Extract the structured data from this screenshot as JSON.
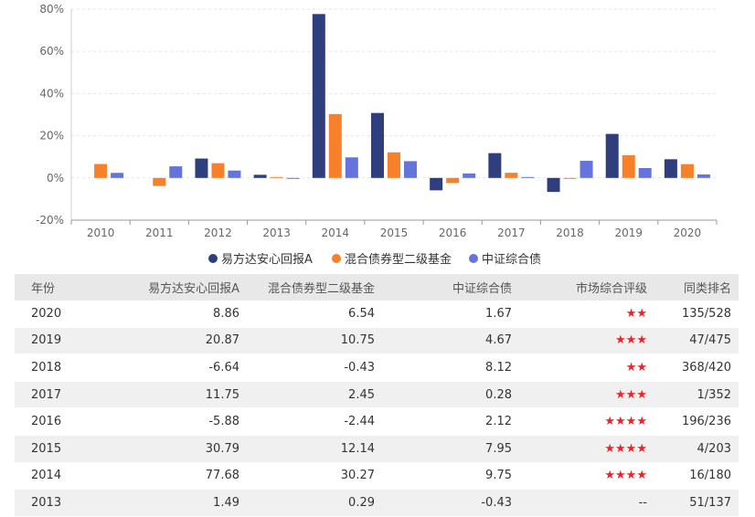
{
  "chart_data": {
    "type": "bar",
    "categories": [
      "2010",
      "2011",
      "2012",
      "2013",
      "2014",
      "2015",
      "2016",
      "2017",
      "2018",
      "2019",
      "2020"
    ],
    "series": [
      {
        "name": "易方达安心回报A",
        "color": "#2f3e7c",
        "values": [
          null,
          null,
          9.2,
          1.49,
          77.68,
          30.79,
          -5.88,
          11.75,
          -6.64,
          20.87,
          8.86
        ]
      },
      {
        "name": "混合债券型二级基金",
        "color": "#f7812a",
        "values": [
          6.6,
          -3.8,
          7.0,
          0.29,
          30.27,
          12.14,
          -2.44,
          2.45,
          -0.43,
          10.75,
          6.54
        ]
      },
      {
        "name": "中证综合债",
        "color": "#6474dc",
        "values": [
          2.4,
          5.5,
          3.5,
          -0.43,
          9.75,
          7.95,
          2.12,
          0.28,
          8.12,
          4.67,
          1.67
        ]
      }
    ],
    "yticks": [
      "80%",
      "60%",
      "40%",
      "20%",
      "0%",
      "-20%"
    ],
    "ylim": [
      -20,
      80
    ],
    "grid": true,
    "legend": "bottom"
  },
  "table": {
    "headers": [
      "年份",
      "易方达安心回报A",
      "混合债券型二级基金",
      "中证综合债",
      "市场综合评级",
      "同类排名"
    ],
    "rows": [
      [
        "2020",
        "8.86",
        "6.54",
        "1.67",
        "★★",
        "135/528"
      ],
      [
        "2019",
        "20.87",
        "10.75",
        "4.67",
        "★★★",
        "47/475"
      ],
      [
        "2018",
        "-6.64",
        "-0.43",
        "8.12",
        "★★",
        "368/420"
      ],
      [
        "2017",
        "11.75",
        "2.45",
        "0.28",
        "★★★",
        "1/352"
      ],
      [
        "2016",
        "-5.88",
        "-2.44",
        "2.12",
        "★★★★",
        "196/236"
      ],
      [
        "2015",
        "30.79",
        "12.14",
        "7.95",
        "★★★★",
        "4/203"
      ],
      [
        "2014",
        "77.68",
        "30.27",
        "9.75",
        "★★★★",
        "16/180"
      ],
      [
        "2013",
        "1.49",
        "0.29",
        "-0.43",
        "--",
        "51/137"
      ]
    ]
  }
}
